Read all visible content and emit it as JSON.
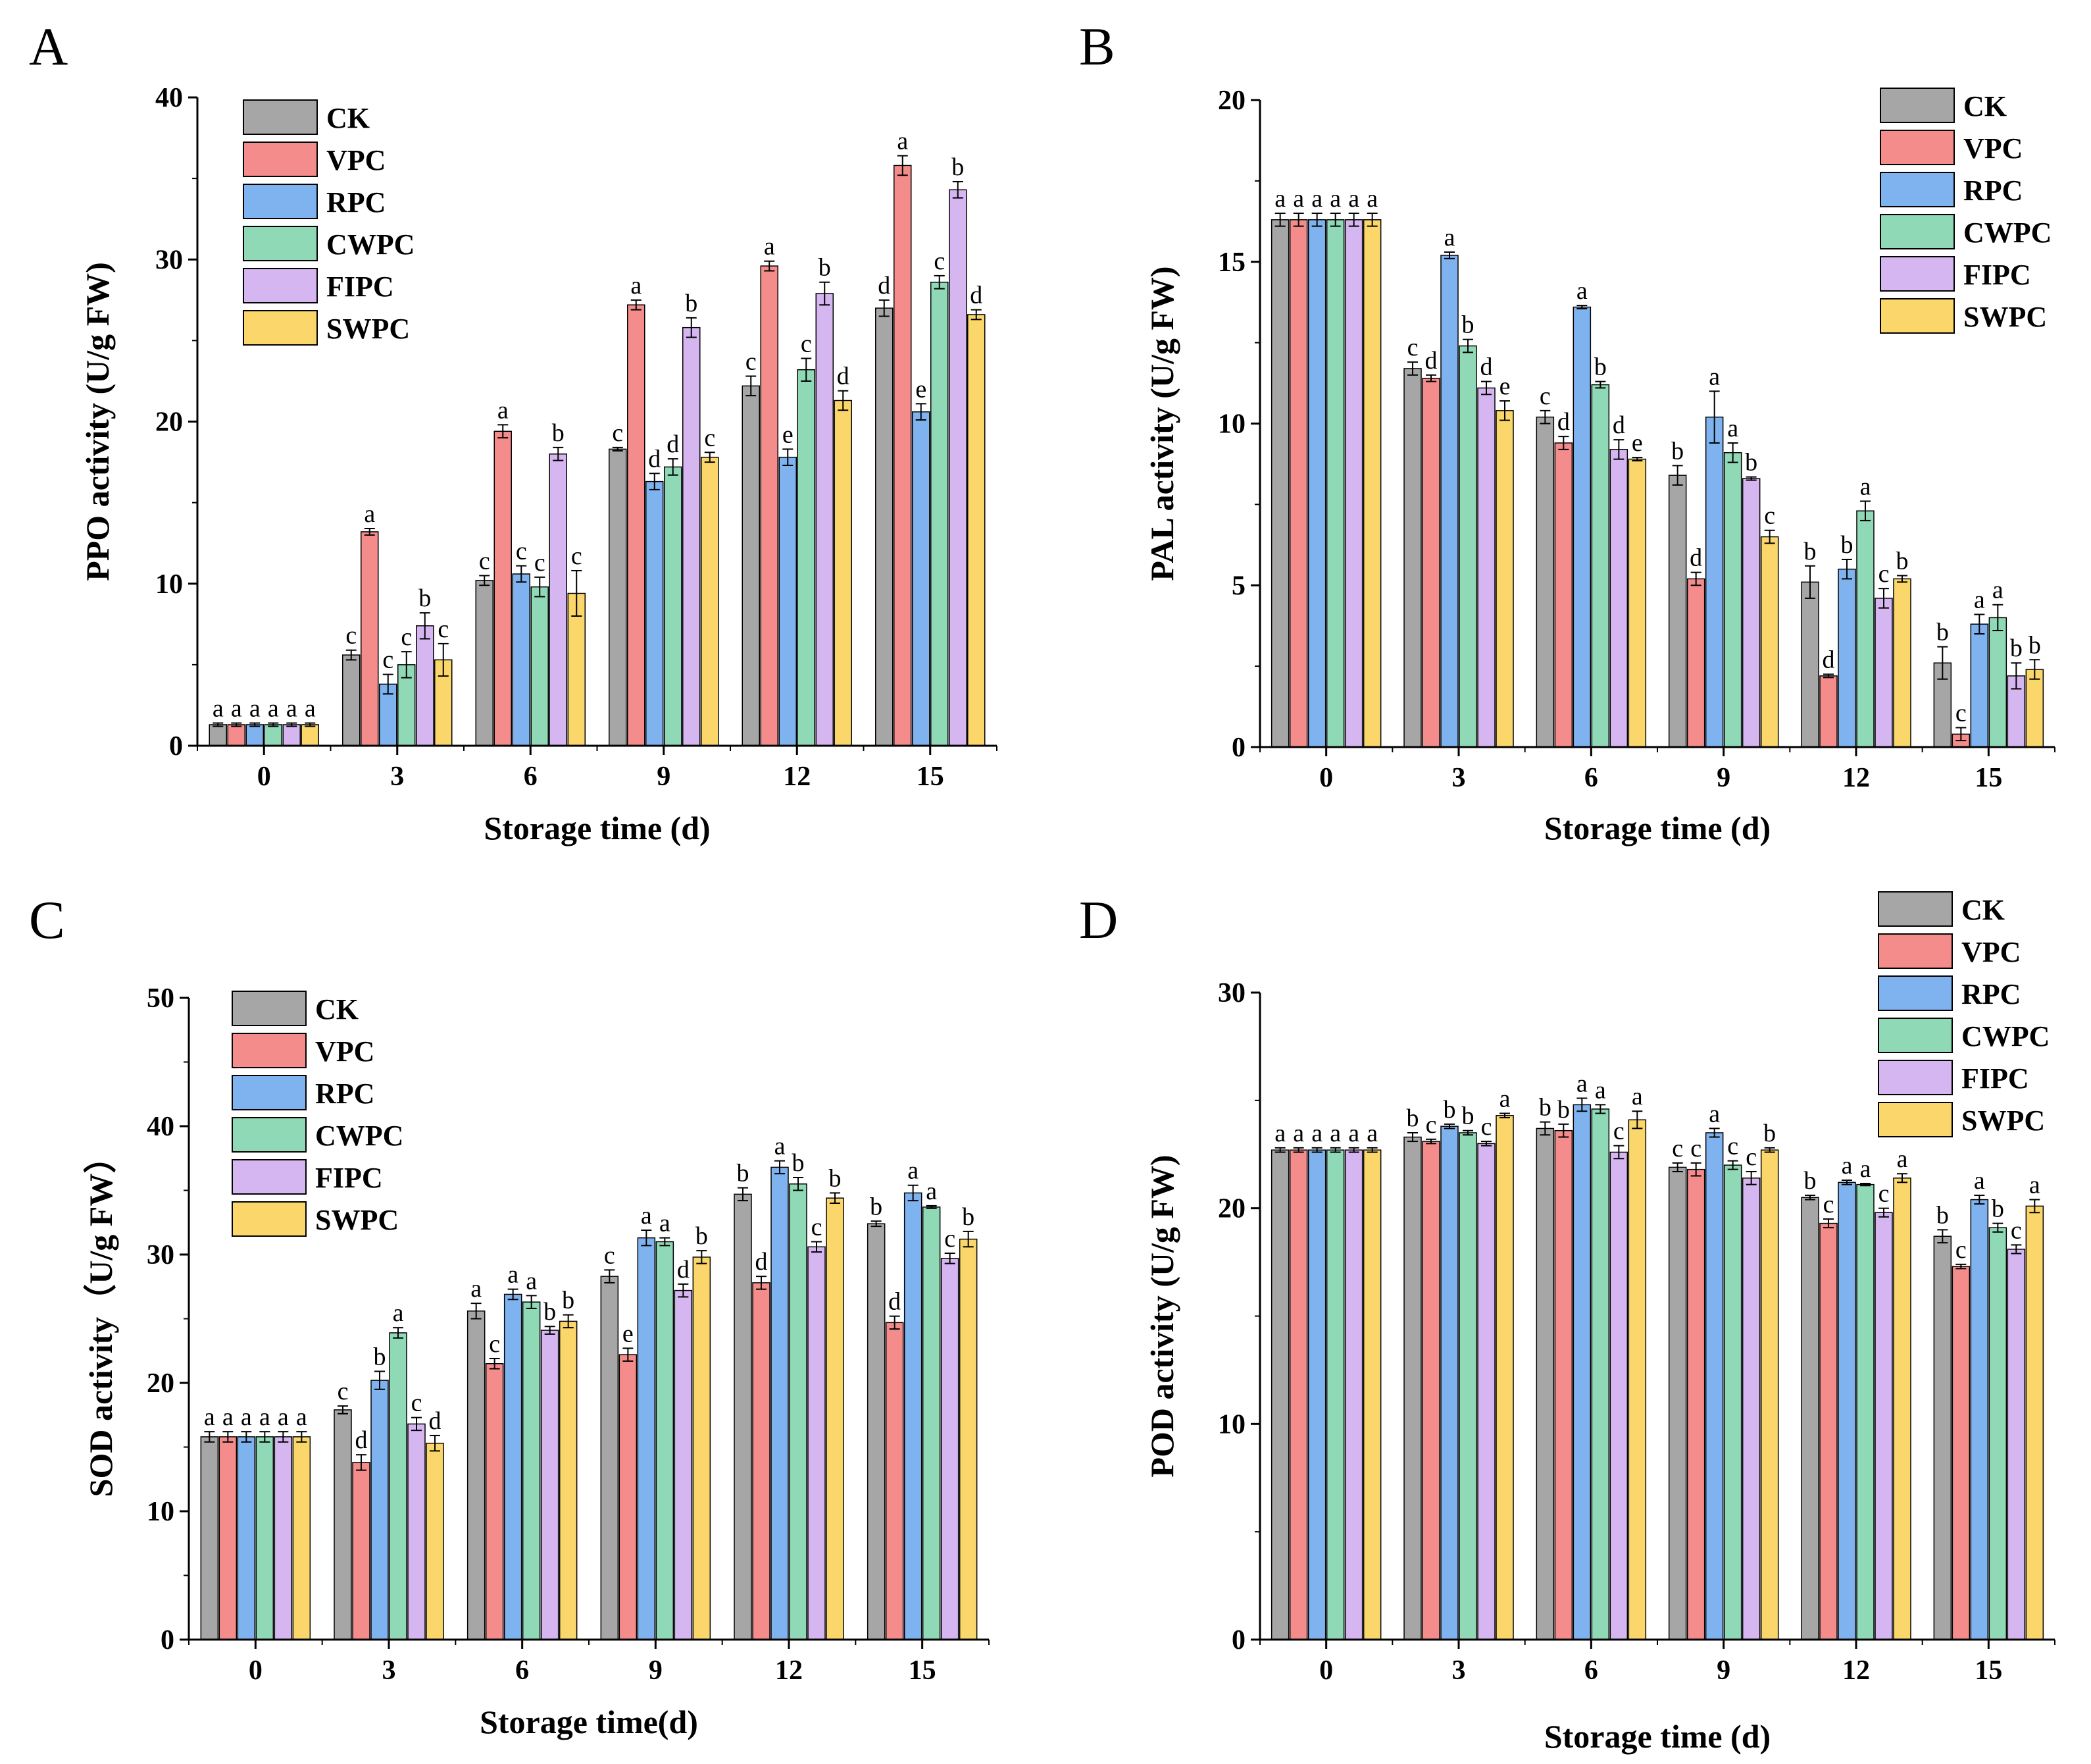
{
  "figure": {
    "series_names": [
      "CK",
      "VPC",
      "RPC",
      "CWPC",
      "FIPC",
      "SWPC"
    ],
    "colors": {
      "CK": "#a6a6a6",
      "VPC": "#f58c8c",
      "RPC": "#7fb3f0",
      "CWPC": "#8fd9b6",
      "FIPC": "#d6b6f0",
      "SWPC": "#fad66b"
    }
  },
  "chart_data": [
    {
      "panel": "A",
      "type": "bar",
      "xlabel": "Storage time (d)",
      "ylabel": "PPO activity (U/g FW)",
      "ylim": [
        0,
        40
      ],
      "yticks": [
        0,
        10,
        20,
        30,
        40
      ],
      "categories": [
        "0",
        "3",
        "6",
        "9",
        "12",
        "15"
      ],
      "legend_position": "top-left",
      "series": [
        {
          "name": "CK",
          "values": [
            1.3,
            5.6,
            10.2,
            18.3,
            22.2,
            27.0
          ],
          "errors": [
            0.1,
            0.3,
            0.3,
            0.1,
            0.6,
            0.5
          ],
          "letters": [
            "a",
            "c",
            "c",
            "c",
            "c",
            "d"
          ]
        },
        {
          "name": "VPC",
          "values": [
            1.3,
            13.2,
            19.4,
            27.2,
            29.6,
            35.8
          ],
          "errors": [
            0.1,
            0.2,
            0.4,
            0.3,
            0.3,
            0.6
          ],
          "letters": [
            "a",
            "a",
            "a",
            "a",
            "a",
            "a"
          ]
        },
        {
          "name": "RPC",
          "values": [
            1.3,
            3.8,
            10.6,
            16.3,
            17.8,
            20.6
          ],
          "errors": [
            0.1,
            0.6,
            0.5,
            0.5,
            0.5,
            0.5
          ],
          "letters": [
            "a",
            "c",
            "c",
            "d",
            "e",
            "e"
          ]
        },
        {
          "name": "CWPC",
          "values": [
            1.3,
            5.0,
            9.8,
            17.2,
            23.2,
            28.6
          ],
          "errors": [
            0.1,
            0.8,
            0.6,
            0.5,
            0.7,
            0.4
          ],
          "letters": [
            "a",
            "c",
            "c",
            "d",
            "c",
            "c"
          ]
        },
        {
          "name": "FIPC",
          "values": [
            1.3,
            7.4,
            18.0,
            25.8,
            27.9,
            34.3
          ],
          "errors": [
            0.1,
            0.8,
            0.4,
            0.6,
            0.7,
            0.5
          ],
          "letters": [
            "a",
            "b",
            "b",
            "b",
            "b",
            "b"
          ]
        },
        {
          "name": "SWPC",
          "values": [
            1.3,
            5.3,
            9.4,
            17.8,
            21.3,
            26.6
          ],
          "errors": [
            0.1,
            1.0,
            1.4,
            0.3,
            0.6,
            0.3
          ],
          "letters": [
            "a",
            "c",
            "c",
            "c",
            "d",
            "d"
          ]
        }
      ]
    },
    {
      "panel": "B",
      "type": "bar",
      "xlabel": "Storage time (d)",
      "ylabel": "PAL activity (U/g FW)",
      "ylim": [
        0,
        20
      ],
      "yticks": [
        0,
        5,
        10,
        15,
        20
      ],
      "categories": [
        "0",
        "3",
        "6",
        "9",
        "12",
        "15"
      ],
      "legend_position": "top-right",
      "series": [
        {
          "name": "CK",
          "values": [
            16.3,
            11.7,
            10.2,
            8.4,
            5.1,
            2.6
          ],
          "errors": [
            0.2,
            0.2,
            0.2,
            0.3,
            0.5,
            0.5
          ],
          "letters": [
            "a",
            "c",
            "c",
            "b",
            "b",
            "b"
          ]
        },
        {
          "name": "VPC",
          "values": [
            16.3,
            11.4,
            9.4,
            5.2,
            2.2,
            0.4
          ],
          "errors": [
            0.2,
            0.1,
            0.2,
            0.2,
            0.05,
            0.2
          ],
          "letters": [
            "a",
            "d",
            "d",
            "d",
            "d",
            "c"
          ]
        },
        {
          "name": "RPC",
          "values": [
            16.3,
            15.2,
            13.6,
            10.2,
            5.5,
            3.8
          ],
          "errors": [
            0.2,
            0.1,
            0.05,
            0.8,
            0.3,
            0.3
          ],
          "letters": [
            "a",
            "a",
            "a",
            "a",
            "b",
            "a"
          ]
        },
        {
          "name": "CWPC",
          "values": [
            16.3,
            12.4,
            11.2,
            9.1,
            7.3,
            4.0
          ],
          "errors": [
            0.2,
            0.2,
            0.1,
            0.3,
            0.3,
            0.4
          ],
          "letters": [
            "a",
            "b",
            "b",
            "a",
            "a",
            "a"
          ]
        },
        {
          "name": "FIPC",
          "values": [
            16.3,
            11.1,
            9.2,
            8.3,
            4.6,
            2.2
          ],
          "errors": [
            0.2,
            0.2,
            0.3,
            0.05,
            0.3,
            0.4
          ],
          "letters": [
            "a",
            "d",
            "d",
            "b",
            "c",
            "b"
          ]
        },
        {
          "name": "SWPC",
          "values": [
            16.3,
            10.4,
            8.9,
            6.5,
            5.2,
            2.4
          ],
          "errors": [
            0.2,
            0.3,
            0.05,
            0.2,
            0.1,
            0.3
          ],
          "letters": [
            "a",
            "e",
            "e",
            "c",
            "b",
            "b"
          ]
        }
      ]
    },
    {
      "panel": "C",
      "type": "bar",
      "xlabel": "Storage time(d)",
      "ylabel": "SOD activity（U/g FW）",
      "ylim": [
        0,
        50
      ],
      "yticks": [
        0,
        10,
        20,
        30,
        40,
        50
      ],
      "categories": [
        "0",
        "3",
        "6",
        "9",
        "12",
        "15"
      ],
      "legend_position": "top-left",
      "series": [
        {
          "name": "CK",
          "values": [
            15.8,
            17.9,
            25.6,
            28.3,
            34.7,
            32.4
          ],
          "errors": [
            0.4,
            0.3,
            0.6,
            0.5,
            0.5,
            0.2
          ],
          "letters": [
            "a",
            "c",
            "a",
            "c",
            "b",
            "b"
          ]
        },
        {
          "name": "VPC",
          "values": [
            15.8,
            13.8,
            21.5,
            22.2,
            27.8,
            24.7
          ],
          "errors": [
            0.4,
            0.6,
            0.4,
            0.5,
            0.5,
            0.5
          ],
          "letters": [
            "a",
            "d",
            "c",
            "e",
            "d",
            "d"
          ]
        },
        {
          "name": "RPC",
          "values": [
            15.8,
            20.2,
            26.9,
            31.3,
            36.8,
            34.8
          ],
          "errors": [
            0.4,
            0.7,
            0.4,
            0.6,
            0.5,
            0.6
          ],
          "letters": [
            "a",
            "b",
            "a",
            "a",
            "a",
            "a"
          ]
        },
        {
          "name": "CWPC",
          "values": [
            15.8,
            23.9,
            26.3,
            31.0,
            35.5,
            33.7
          ],
          "errors": [
            0.4,
            0.4,
            0.5,
            0.3,
            0.5,
            0.1
          ],
          "letters": [
            "a",
            "a",
            "a",
            "a",
            "b",
            "a"
          ]
        },
        {
          "name": "FIPC",
          "values": [
            15.8,
            16.8,
            24.1,
            27.2,
            30.6,
            29.7
          ],
          "errors": [
            0.4,
            0.5,
            0.3,
            0.5,
            0.4,
            0.4
          ],
          "letters": [
            "a",
            "c",
            "b",
            "d",
            "c",
            "c"
          ]
        },
        {
          "name": "SWPC",
          "values": [
            15.8,
            15.3,
            24.8,
            29.8,
            34.4,
            31.2
          ],
          "errors": [
            0.4,
            0.6,
            0.5,
            0.5,
            0.4,
            0.6
          ],
          "letters": [
            "a",
            "d",
            "b",
            "b",
            "b",
            "b"
          ]
        }
      ]
    },
    {
      "panel": "D",
      "type": "bar",
      "xlabel": "Storage time (d)",
      "ylabel": "POD activity (U/g FW)",
      "ylim": [
        0,
        30
      ],
      "yticks": [
        0,
        10,
        20,
        30
      ],
      "categories": [
        "0",
        "3",
        "6",
        "9",
        "12",
        "15"
      ],
      "legend_position": "top-right",
      "series": [
        {
          "name": "CK",
          "values": [
            22.7,
            23.3,
            23.7,
            21.9,
            20.5,
            18.7
          ],
          "errors": [
            0.1,
            0.2,
            0.3,
            0.2,
            0.1,
            0.3
          ],
          "letters": [
            "a",
            "b",
            "b",
            "c",
            "b",
            "b"
          ]
        },
        {
          "name": "VPC",
          "values": [
            22.7,
            23.1,
            23.6,
            21.8,
            19.3,
            17.3
          ],
          "errors": [
            0.1,
            0.1,
            0.3,
            0.3,
            0.2,
            0.1
          ],
          "letters": [
            "a",
            "c",
            "b",
            "c",
            "c",
            "c"
          ]
        },
        {
          "name": "RPC",
          "values": [
            22.7,
            23.8,
            24.8,
            23.5,
            21.2,
            20.4
          ],
          "errors": [
            0.1,
            0.1,
            0.3,
            0.2,
            0.1,
            0.2
          ],
          "letters": [
            "a",
            "b",
            "a",
            "a",
            "a",
            "a"
          ]
        },
        {
          "name": "CWPC",
          "values": [
            22.7,
            23.5,
            24.6,
            22.0,
            21.1,
            19.1
          ],
          "errors": [
            0.1,
            0.1,
            0.2,
            0.2,
            0.05,
            0.2
          ],
          "letters": [
            "a",
            "b",
            "a",
            "c",
            "a",
            "b"
          ]
        },
        {
          "name": "FIPC",
          "values": [
            22.7,
            23.0,
            22.6,
            21.4,
            19.8,
            18.1
          ],
          "errors": [
            0.1,
            0.1,
            0.3,
            0.3,
            0.2,
            0.2
          ],
          "letters": [
            "a",
            "c",
            "c",
            "c",
            "c",
            "c"
          ]
        },
        {
          "name": "SWPC",
          "values": [
            22.7,
            24.3,
            24.1,
            22.7,
            21.4,
            20.1
          ],
          "errors": [
            0.1,
            0.1,
            0.4,
            0.1,
            0.2,
            0.3
          ],
          "letters": [
            "a",
            "a",
            "a",
            "b",
            "a",
            "a"
          ]
        }
      ]
    }
  ]
}
